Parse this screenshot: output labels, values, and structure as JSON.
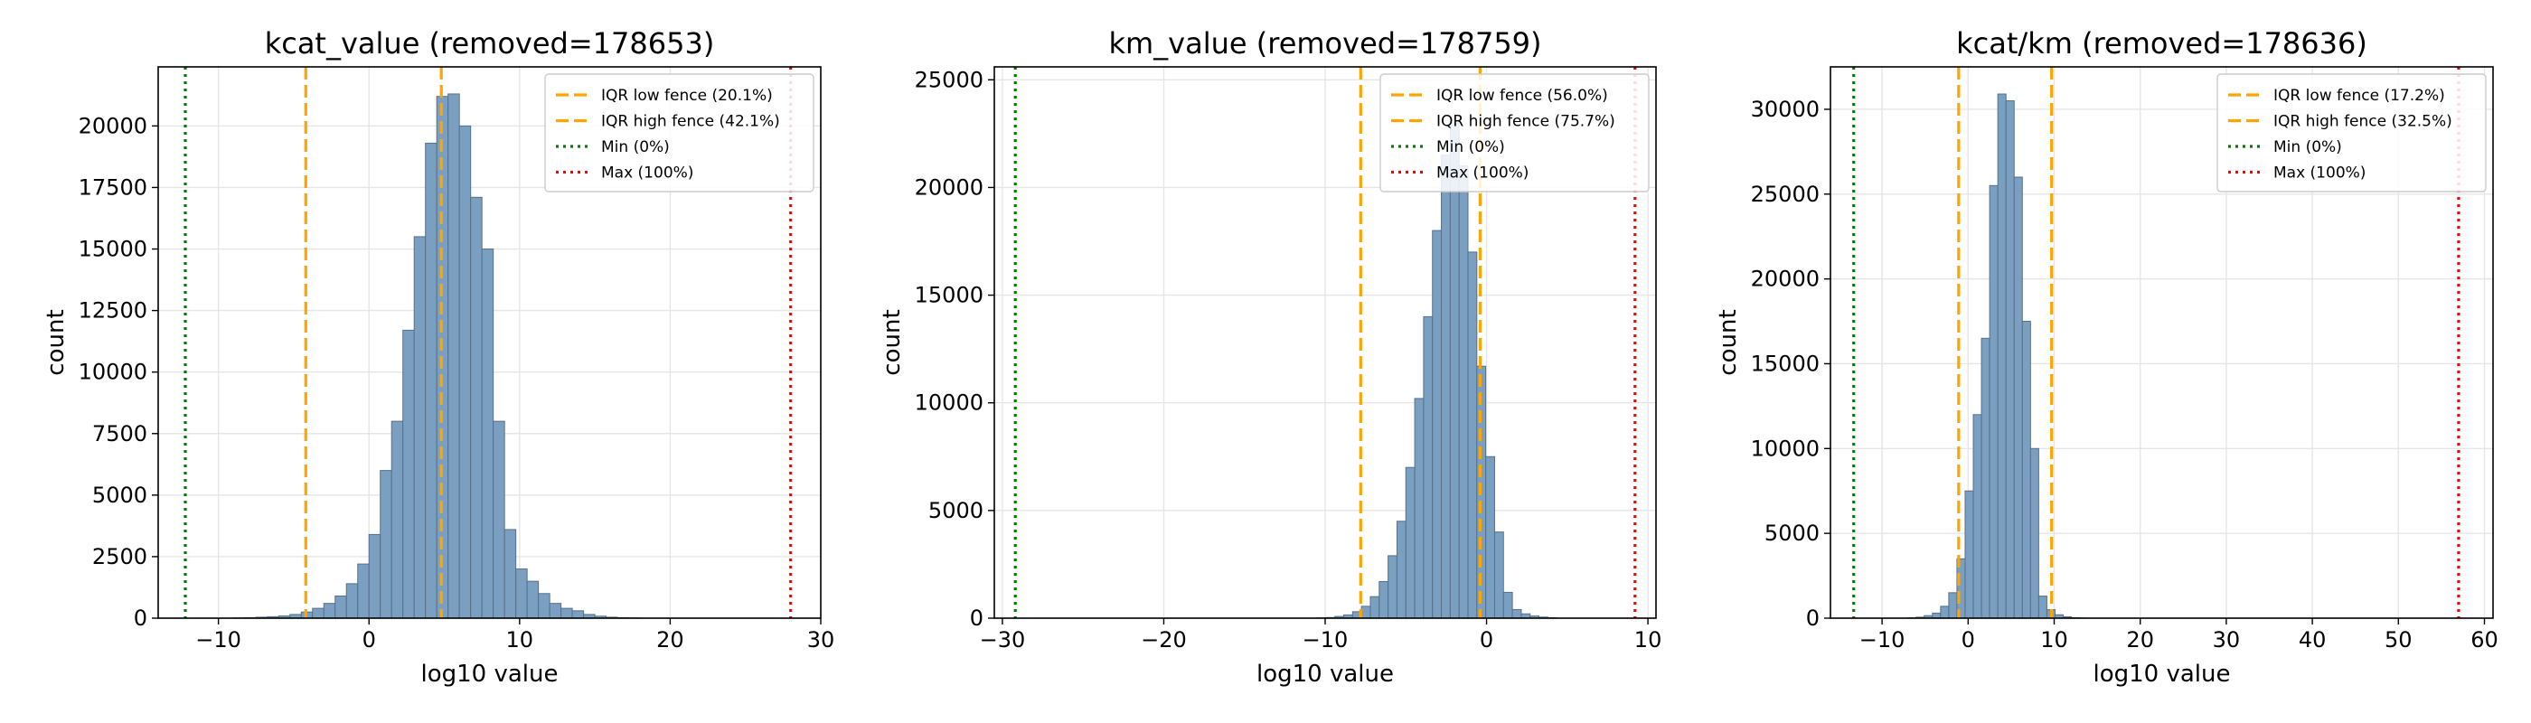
{
  "chart_data": [
    {
      "type": "bar",
      "title": "kcat_value (removed=178653)",
      "xlabel": "log10 value",
      "ylabel": "count",
      "xlim": [
        -14,
        30
      ],
      "ylim": [
        0,
        22400
      ],
      "xticks": [
        -10,
        0,
        10,
        20,
        30
      ],
      "yticks": [
        0,
        2500,
        5000,
        7500,
        10000,
        12500,
        15000,
        17500,
        20000
      ],
      "grid": true,
      "legend_position": "top-right",
      "bin_width": 0.75,
      "bins_start": -9.0,
      "values": [
        10,
        20,
        40,
        60,
        90,
        150,
        250,
        400,
        600,
        900,
        1400,
        2200,
        3400,
        6000,
        8000,
        11700,
        15500,
        19300,
        21200,
        21300,
        20000,
        17100,
        15000,
        8000,
        3600,
        2000,
        1500,
        1000,
        600,
        400,
        300,
        150,
        80,
        40,
        20,
        10
      ],
      "lines": [
        {
          "label": "IQR low fence (20.1%)",
          "x": -4.2,
          "color": "#ffa500",
          "style": "dashed"
        },
        {
          "label": "IQR high fence (42.1%)",
          "x": 4.8,
          "color": "#ffa500",
          "style": "dashed"
        },
        {
          "label": "Min (0%)",
          "x": -12.2,
          "color": "#008000",
          "style": "dotted"
        },
        {
          "label": "Max (100%)",
          "x": 28.0,
          "color": "#ff0000",
          "style": "dotted"
        }
      ]
    },
    {
      "type": "bar",
      "title": "km_value (removed=178759)",
      "xlabel": "log10 value",
      "ylabel": "count",
      "xlim": [
        -30.5,
        10.5
      ],
      "ylim": [
        0,
        25600
      ],
      "xticks": [
        -30,
        -20,
        -10,
        0,
        10
      ],
      "yticks": [
        0,
        5000,
        10000,
        15000,
        20000,
        25000
      ],
      "grid": true,
      "legend_position": "top-right",
      "bin_width": 0.55,
      "bins_start": -10.5,
      "values": [
        15,
        30,
        80,
        150,
        300,
        550,
        1000,
        1700,
        2900,
        4500,
        7000,
        10200,
        14000,
        18000,
        21500,
        23000,
        21000,
        17000,
        11700,
        7500,
        4000,
        1200,
        400,
        200,
        100,
        50,
        20
      ],
      "lines": [
        {
          "label": "IQR low fence (56.0%)",
          "x": -7.8,
          "color": "#ffa500",
          "style": "dashed"
        },
        {
          "label": "IQR high fence (75.7%)",
          "x": -0.4,
          "color": "#ffa500",
          "style": "dashed"
        },
        {
          "label": "Min (0%)",
          "x": -29.2,
          "color": "#008000",
          "style": "dotted"
        },
        {
          "label": "Max (100%)",
          "x": 9.2,
          "color": "#ff0000",
          "style": "dotted"
        }
      ]
    },
    {
      "type": "bar",
      "title": "kcat/km (removed=178636)",
      "xlabel": "log10 value",
      "ylabel": "count",
      "xlim": [
        -16,
        61
      ],
      "ylim": [
        0,
        32500
      ],
      "xticks": [
        -10,
        0,
        10,
        20,
        30,
        40,
        50,
        60
      ],
      "yticks": [
        0,
        5000,
        10000,
        15000,
        20000,
        25000,
        30000
      ],
      "grid": true,
      "legend_position": "top-right",
      "bin_width": 0.95,
      "bins_start": -7.0,
      "values": [
        20,
        60,
        150,
        300,
        700,
        1500,
        3500,
        7500,
        12000,
        16500,
        25500,
        30900,
        30500,
        26000,
        17500,
        10000,
        1300,
        500,
        200,
        80,
        30,
        10
      ],
      "lines": [
        {
          "label": "IQR low fence (17.2%)",
          "x": -1.1,
          "color": "#ffa500",
          "style": "dashed"
        },
        {
          "label": "IQR high fence (32.5%)",
          "x": 9.7,
          "color": "#ffa500",
          "style": "dashed"
        },
        {
          "label": "Min (0%)",
          "x": -13.3,
          "color": "#008000",
          "style": "dotted"
        },
        {
          "label": "Max (100%)",
          "x": 57.0,
          "color": "#ff0000",
          "style": "dotted"
        }
      ]
    }
  ]
}
